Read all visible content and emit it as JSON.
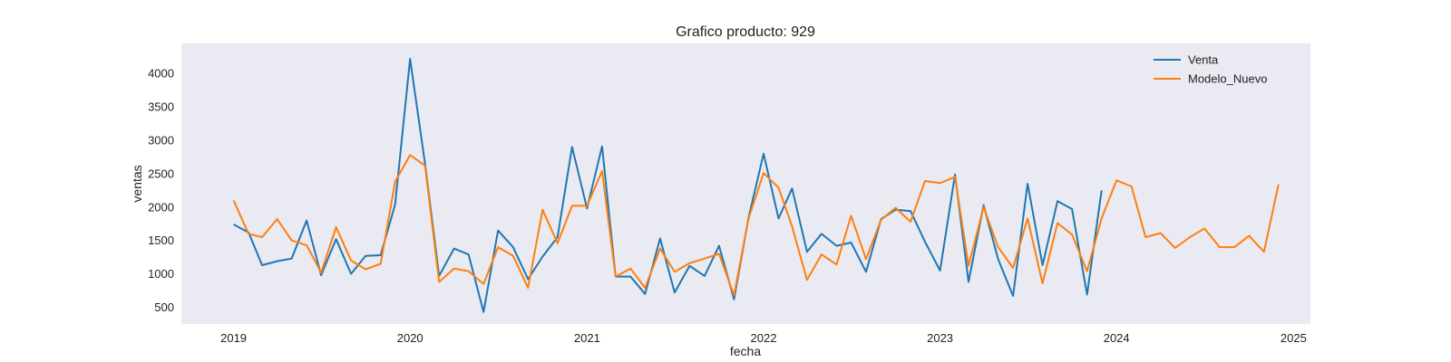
{
  "chart_data": {
    "type": "line",
    "title": "Grafico producto: 929",
    "xlabel": "fecha",
    "ylabel": "ventas",
    "xlim": [
      "2018-09-15",
      "2025-02-05"
    ],
    "ylim": [
      250,
      4450
    ],
    "x_ticks": [
      "2019",
      "2020",
      "2021",
      "2022",
      "2023",
      "2024",
      "2025"
    ],
    "y_ticks": [
      500,
      1000,
      1500,
      2000,
      2500,
      3000,
      3500,
      4000
    ],
    "grid": false,
    "background": "#eaeaf2",
    "legend_position": "top-right",
    "series": [
      {
        "name": "Venta",
        "color": "#1f77b4",
        "x": [
          "2019-01-01",
          "2019-02-01",
          "2019-03-01",
          "2019-04-01",
          "2019-05-01",
          "2019-06-01",
          "2019-07-01",
          "2019-08-01",
          "2019-09-01",
          "2019-10-01",
          "2019-11-01",
          "2019-12-01",
          "2020-01-01",
          "2020-02-01",
          "2020-03-01",
          "2020-04-01",
          "2020-05-01",
          "2020-06-01",
          "2020-07-01",
          "2020-08-01",
          "2020-09-01",
          "2020-10-01",
          "2020-11-01",
          "2020-12-01",
          "2021-01-01",
          "2021-02-01",
          "2021-03-01",
          "2021-04-01",
          "2021-05-01",
          "2021-06-01",
          "2021-07-01",
          "2021-08-01",
          "2021-09-01",
          "2021-10-01",
          "2021-11-01",
          "2021-12-01",
          "2022-01-01",
          "2022-02-01",
          "2022-03-01",
          "2022-04-01",
          "2022-05-01",
          "2022-06-01",
          "2022-07-01",
          "2022-08-01",
          "2022-09-01",
          "2022-10-01",
          "2022-11-01",
          "2022-12-01",
          "2023-01-01",
          "2023-02-01",
          "2023-03-01",
          "2023-04-01",
          "2023-05-01",
          "2023-06-01",
          "2023-07-01",
          "2023-08-01",
          "2023-09-01",
          "2023-10-01",
          "2023-11-01",
          "2023-12-01"
        ],
        "values": [
          1740,
          1620,
          1130,
          1190,
          1230,
          1800,
          980,
          1520,
          1000,
          1270,
          1280,
          2040,
          4220,
          2650,
          970,
          1380,
          1290,
          430,
          1650,
          1400,
          920,
          1260,
          1550,
          2900,
          1980,
          2910,
          960,
          960,
          700,
          1530,
          720,
          1120,
          970,
          1420,
          620,
          1840,
          2800,
          1830,
          2280,
          1330,
          1600,
          1420,
          1470,
          1030,
          1820,
          1960,
          1940,
          1480,
          1050,
          2490,
          880,
          2030,
          1220,
          670,
          2350,
          1130,
          2090,
          1970,
          690,
          2250
        ]
      },
      {
        "name": "Modelo_Nuevo",
        "color": "#ff7f0e",
        "x": [
          "2019-01-01",
          "2019-02-01",
          "2019-03-01",
          "2019-04-01",
          "2019-05-01",
          "2019-06-01",
          "2019-07-01",
          "2019-08-01",
          "2019-09-01",
          "2019-10-01",
          "2019-11-01",
          "2019-12-01",
          "2020-01-01",
          "2020-02-01",
          "2020-03-01",
          "2020-04-01",
          "2020-05-01",
          "2020-06-01",
          "2020-07-01",
          "2020-08-01",
          "2020-09-01",
          "2020-10-01",
          "2020-11-01",
          "2020-12-01",
          "2021-01-01",
          "2021-02-01",
          "2021-03-01",
          "2021-04-01",
          "2021-05-01",
          "2021-06-01",
          "2021-07-01",
          "2021-08-01",
          "2021-09-01",
          "2021-10-01",
          "2021-11-01",
          "2021-12-01",
          "2022-01-01",
          "2022-02-01",
          "2022-03-01",
          "2022-04-01",
          "2022-05-01",
          "2022-06-01",
          "2022-07-01",
          "2022-08-01",
          "2022-09-01",
          "2022-10-01",
          "2022-11-01",
          "2022-12-01",
          "2023-01-01",
          "2023-02-01",
          "2023-03-01",
          "2023-04-01",
          "2023-05-01",
          "2023-06-01",
          "2023-07-01",
          "2023-08-01",
          "2023-09-01",
          "2023-10-01",
          "2023-11-01",
          "2023-12-01",
          "2024-01-01",
          "2024-02-01",
          "2024-03-01",
          "2024-04-01",
          "2024-05-01",
          "2024-06-01",
          "2024-07-01",
          "2024-08-01",
          "2024-09-01",
          "2024-10-01",
          "2024-11-01",
          "2024-12-01"
        ],
        "values": [
          2100,
          1600,
          1550,
          1820,
          1500,
          1430,
          1020,
          1700,
          1200,
          1070,
          1150,
          2380,
          2780,
          2620,
          880,
          1080,
          1040,
          850,
          1400,
          1270,
          790,
          1960,
          1460,
          2020,
          2020,
          2540,
          960,
          1080,
          790,
          1380,
          1030,
          1160,
          1230,
          1300,
          680,
          1830,
          2510,
          2290,
          1710,
          910,
          1290,
          1140,
          1870,
          1220,
          1810,
          1990,
          1780,
          2390,
          2360,
          2450,
          1120,
          2000,
          1400,
          1090,
          1830,
          860,
          1760,
          1590,
          1040,
          1830,
          2400,
          2310,
          1550,
          1610,
          1390,
          1550,
          1680,
          1400,
          1400,
          1570,
          1330,
          2340
        ]
      }
    ]
  }
}
